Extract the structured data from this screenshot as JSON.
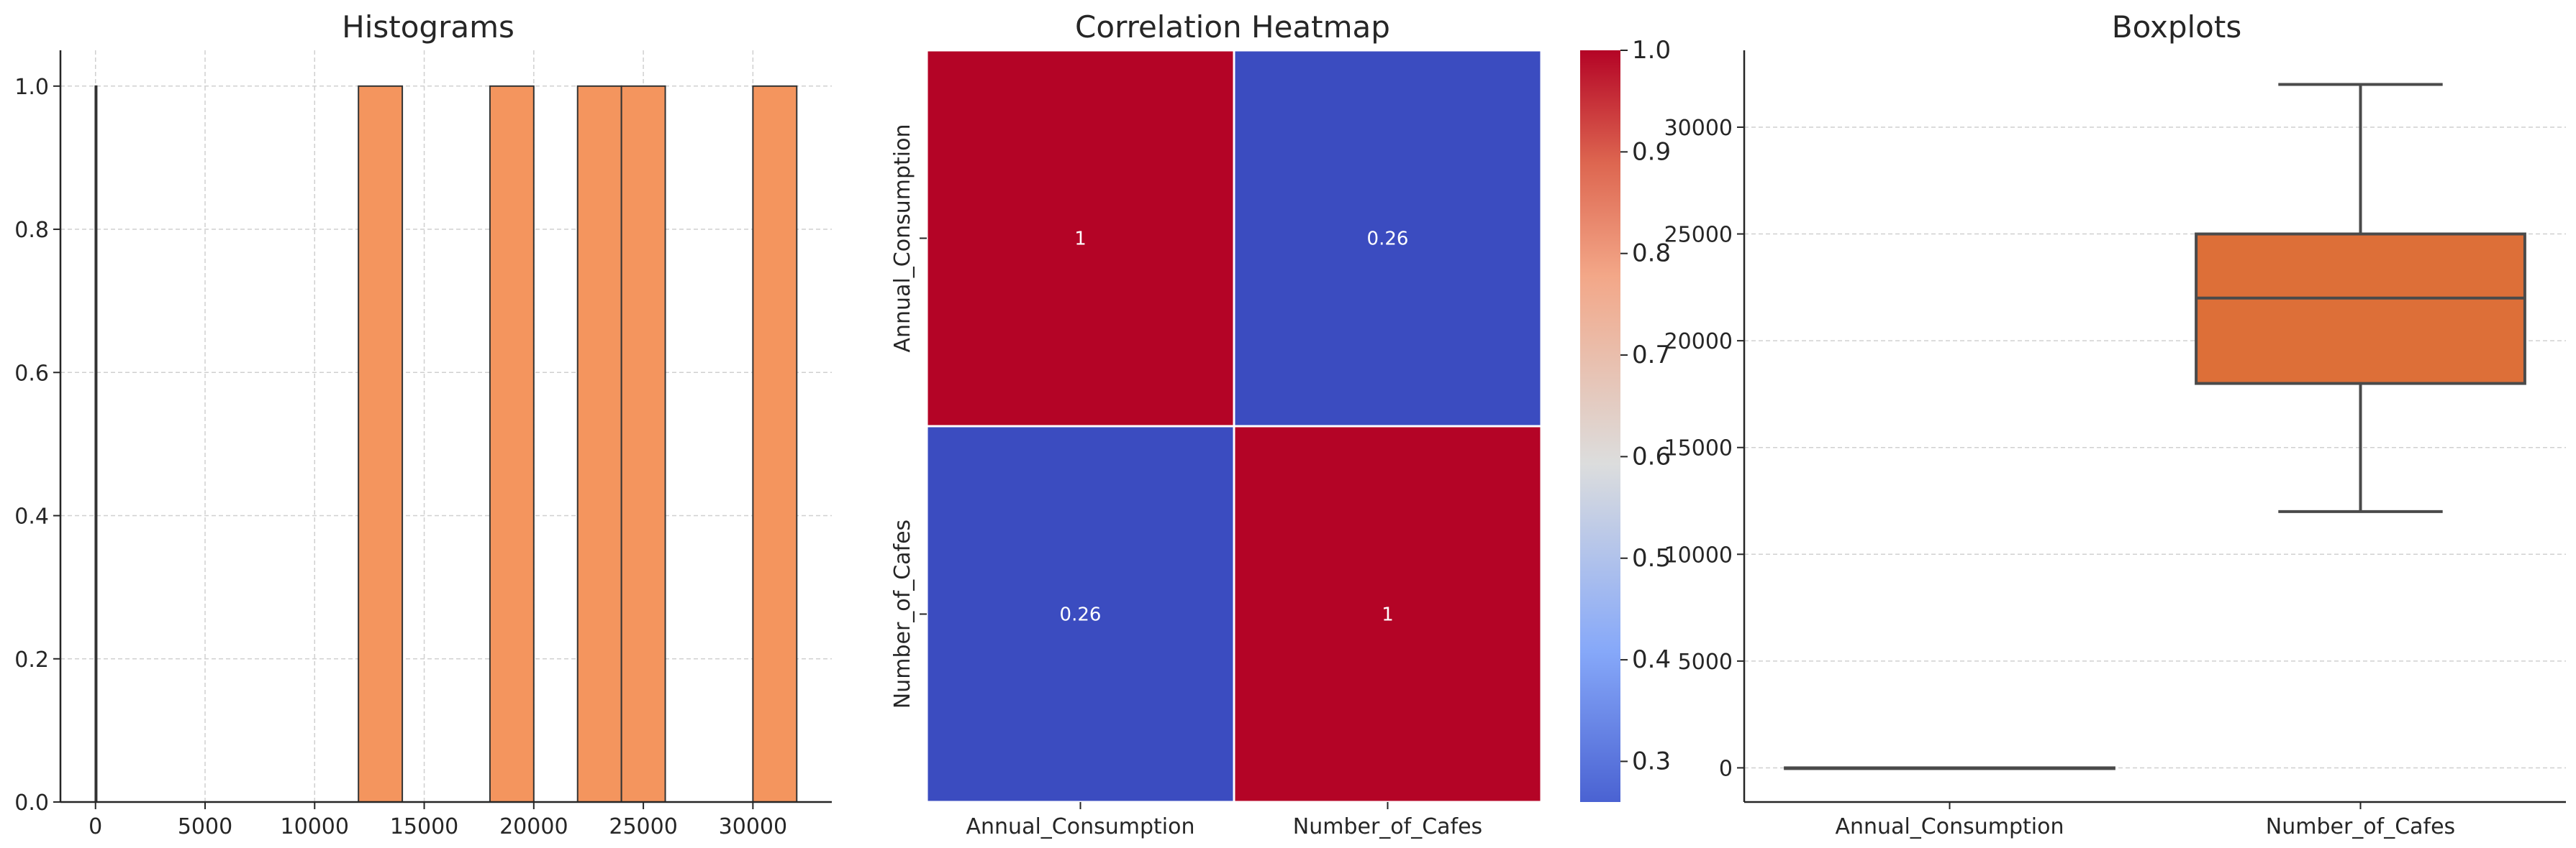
{
  "chart_data": [
    {
      "type": "bar",
      "title": "Histograms",
      "xlim": [
        -1600,
        33600
      ],
      "ylim": [
        0,
        1.05
      ],
      "x_ticks": [
        0,
        5000,
        10000,
        15000,
        20000,
        25000,
        30000
      ],
      "y_ticks": [
        0.0,
        0.2,
        0.4,
        0.6,
        0.8,
        1.0
      ],
      "y_tick_labels": [
        "0.0",
        "0.2",
        "0.4",
        "0.6",
        "0.8",
        "1.0"
      ],
      "grid": true,
      "series": [
        {
          "color": "#f4955e",
          "bins": [
            {
              "x0": 12000,
              "x1": 14000,
              "count": 1
            },
            {
              "x0": 18000,
              "x1": 20000,
              "count": 1
            },
            {
              "x0": 22000,
              "x1": 24000,
              "count": 1
            },
            {
              "x0": 24000,
              "x1": 26000,
              "count": 1
            },
            {
              "x0": 30000,
              "x1": 32000,
              "count": 1
            }
          ]
        },
        {
          "color": "#4a73c8",
          "bins": [
            {
              "x0": -10,
              "x1": 10,
              "count": 1
            }
          ]
        }
      ]
    },
    {
      "type": "heatmap",
      "title": "Correlation Heatmap",
      "row_labels": [
        "Annual_Consumption",
        "Number_of_Cafes"
      ],
      "col_labels": [
        "Annual_Consumption",
        "Number_of_Cafes"
      ],
      "values": [
        [
          1,
          0.26
        ],
        [
          0.26,
          1
        ]
      ],
      "cell_labels": [
        [
          "1",
          "0.26"
        ],
        [
          "0.26",
          "1"
        ]
      ],
      "colormap": "coolwarm",
      "colors": {
        "high": "#b40426",
        "low": "#3b4cc0"
      },
      "colorbar_range": [
        0.26,
        1.0
      ],
      "colorbar_ticks": [
        0.3,
        0.4,
        0.5,
        0.6,
        0.7,
        0.8,
        0.9,
        1.0
      ]
    },
    {
      "type": "box",
      "title": "Boxplots",
      "categories": [
        "Annual_Consumption",
        "Number_of_Cafes"
      ],
      "ylim": [
        -1600,
        33600
      ],
      "y_ticks": [
        0,
        5000,
        10000,
        15000,
        20000,
        25000,
        30000
      ],
      "grid": true,
      "boxes": [
        {
          "whisker_low": 0,
          "q1": 0,
          "median": 0,
          "q3": 0,
          "whisker_high": 0,
          "color": "#4a73c8"
        },
        {
          "whisker_low": 12000,
          "q1": 18000,
          "median": 22000,
          "q3": 25000,
          "whisker_high": 32000,
          "color": "#dd6f38"
        }
      ]
    }
  ]
}
